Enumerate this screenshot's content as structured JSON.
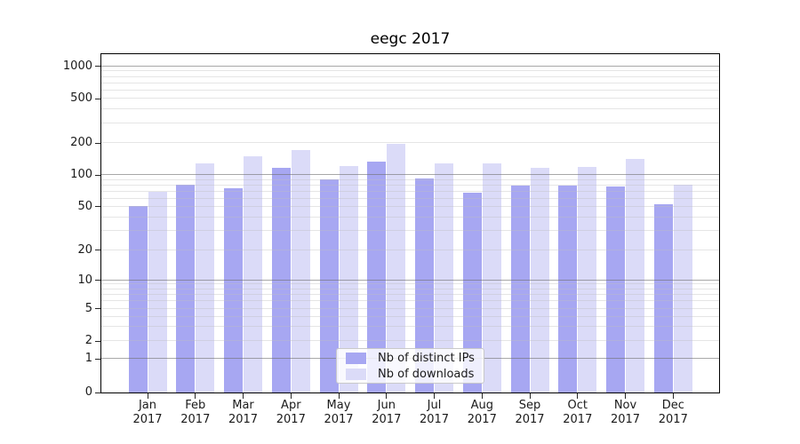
{
  "chart_data": {
    "type": "bar",
    "title": "eegc 2017",
    "xlabel": "",
    "ylabel": "",
    "categories": [
      {
        "month": "Jan",
        "year": "2017"
      },
      {
        "month": "Feb",
        "year": "2017"
      },
      {
        "month": "Mar",
        "year": "2017"
      },
      {
        "month": "Apr",
        "year": "2017"
      },
      {
        "month": "May",
        "year": "2017"
      },
      {
        "month": "Jun",
        "year": "2017"
      },
      {
        "month": "Jul",
        "year": "2017"
      },
      {
        "month": "Aug",
        "year": "2017"
      },
      {
        "month": "Sep",
        "year": "2017"
      },
      {
        "month": "Oct",
        "year": "2017"
      },
      {
        "month": "Nov",
        "year": "2017"
      },
      {
        "month": "Dec",
        "year": "2017"
      }
    ],
    "series": [
      {
        "name": "Nb of distinct IPs",
        "color": "#a7a7f2",
        "values": [
          51,
          81,
          75,
          117,
          91,
          134,
          93,
          68,
          80,
          80,
          78,
          53
        ]
      },
      {
        "name": "Nb of downloads",
        "color": "#dbdbf8",
        "values": [
          70,
          128,
          149,
          171,
          121,
          195,
          129,
          129,
          117,
          119,
          141,
          81
        ]
      }
    ],
    "y_ticks": [
      0,
      1,
      2,
      5,
      10,
      20,
      50,
      100,
      200,
      500,
      1000
    ],
    "ylim": [
      0,
      1300
    ],
    "grid": true,
    "legend_position": "lower center",
    "layout": {
      "yscale": "symlog-like",
      "scale_anchors": [
        [
          0,
          0.0
        ],
        [
          1,
          0.0986
        ],
        [
          2,
          0.1521
        ],
        [
          5,
          0.2478
        ],
        [
          10,
          0.3321
        ],
        [
          20,
          0.4208
        ],
        [
          50,
          0.5487
        ],
        [
          100,
          0.6426
        ],
        [
          200,
          0.7373
        ],
        [
          500,
          0.8683
        ],
        [
          1000,
          0.9635
        ]
      ],
      "gridlines_major": [
        1,
        10,
        100,
        1000
      ],
      "gridlines_minor": [
        2,
        3,
        4,
        5,
        6,
        7,
        8,
        9,
        20,
        30,
        40,
        50,
        60,
        70,
        80,
        90,
        200,
        300,
        400,
        500,
        600,
        700,
        800,
        900
      ]
    }
  }
}
